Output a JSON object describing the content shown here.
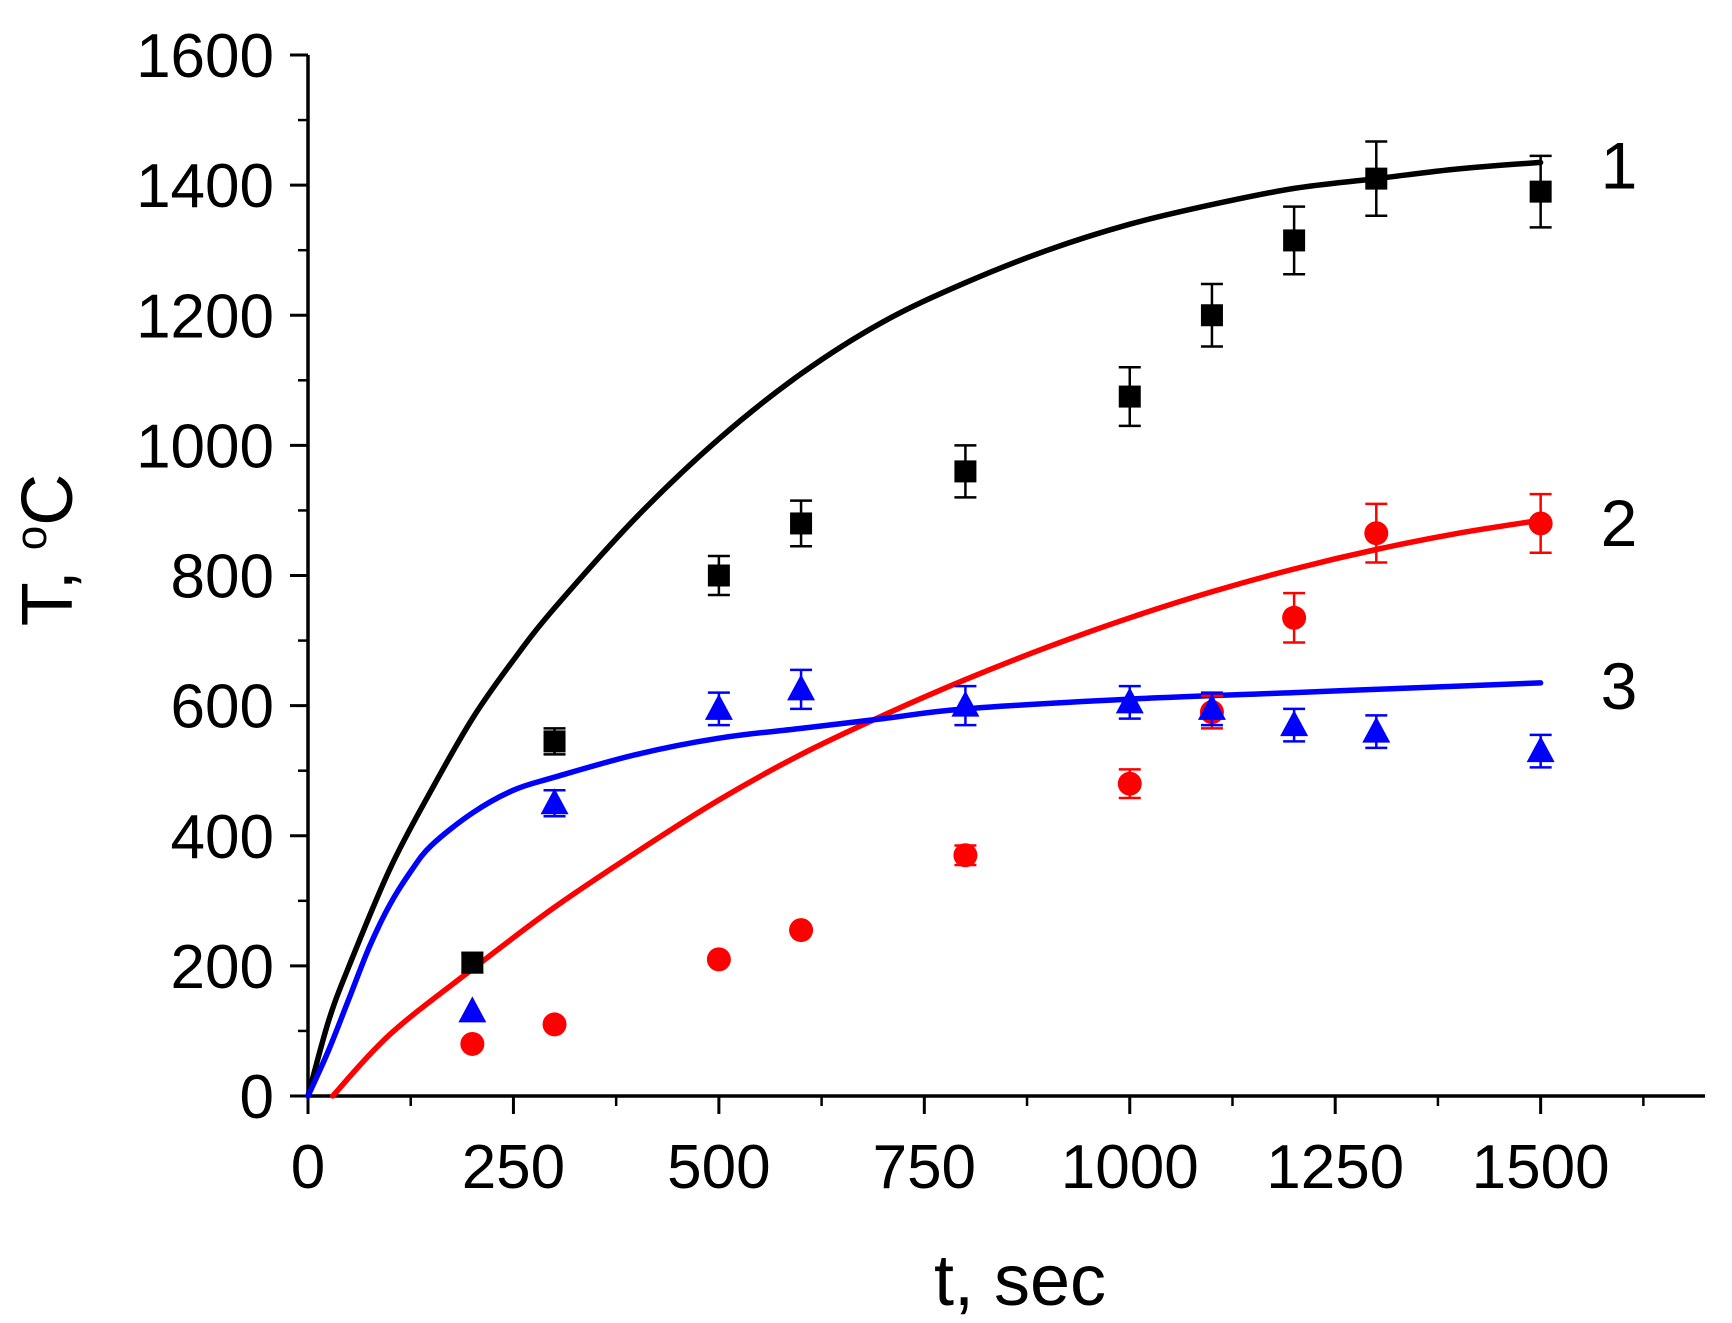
{
  "chart_data": {
    "type": "scatter",
    "xlabel": "t, sec",
    "ylabel_main": "T, ",
    "ylabel_sup": "o",
    "ylabel_unit": "C",
    "xlim": [
      0,
      1700
    ],
    "ylim": [
      0,
      1600
    ],
    "x_ticks": [
      0,
      250,
      500,
      750,
      1000,
      1250,
      1500
    ],
    "x_tick_labels": [
      "0",
      "250",
      "500",
      "750",
      "1000",
      "1250",
      "1500"
    ],
    "y_ticks": [
      0,
      200,
      400,
      600,
      800,
      1000,
      1200,
      1400,
      1600
    ],
    "y_tick_labels": [
      "0",
      "200",
      "400",
      "600",
      "800",
      "1000",
      "1200",
      "1400",
      "1600"
    ],
    "grid": false,
    "legend": "none",
    "series": [
      {
        "name": "1",
        "label": "1",
        "color": "#000000",
        "marker": "square",
        "x": [
          200,
          300,
          500,
          600,
          800,
          1000,
          1100,
          1200,
          1300,
          1500
        ],
        "y": [
          205,
          545,
          800,
          880,
          960,
          1075,
          1200,
          1315,
          1410,
          1390
        ],
        "err": [
          15,
          20,
          30,
          35,
          40,
          45,
          48,
          52,
          57,
          55
        ],
        "curve": {
          "x": [
            0,
            25,
            50,
            100,
            150,
            200,
            250,
            300,
            400,
            500,
            600,
            700,
            800,
            900,
            1000,
            1100,
            1200,
            1300,
            1400,
            1500
          ],
          "y": [
            0,
            115,
            200,
            350,
            470,
            580,
            670,
            750,
            890,
            1010,
            1110,
            1190,
            1250,
            1300,
            1340,
            1370,
            1395,
            1410,
            1425,
            1435
          ]
        }
      },
      {
        "name": "2",
        "label": "2",
        "color": "#ff0000",
        "marker": "circle",
        "x": [
          200,
          300,
          500,
          600,
          800,
          1000,
          1100,
          1200,
          1300,
          1500
        ],
        "y": [
          80,
          110,
          210,
          255,
          370,
          480,
          590,
          735,
          865,
          880
        ],
        "err": [
          0,
          0,
          0,
          0,
          15,
          22,
          25,
          38,
          45,
          45
        ],
        "curve": {
          "x": [
            30,
            100,
            200,
            300,
            400,
            500,
            600,
            700,
            800,
            900,
            1000,
            1100,
            1200,
            1300,
            1400,
            1500
          ],
          "y": [
            0,
            95,
            195,
            290,
            375,
            455,
            525,
            585,
            640,
            690,
            735,
            775,
            810,
            840,
            865,
            885
          ]
        }
      },
      {
        "name": "3",
        "label": "3",
        "color": "#0000ff",
        "marker": "triangle",
        "x": [
          200,
          300,
          500,
          600,
          800,
          1000,
          1100,
          1200,
          1300,
          1500
        ],
        "y": [
          130,
          450,
          595,
          625,
          600,
          605,
          595,
          570,
          560,
          530
        ],
        "err": [
          0,
          20,
          25,
          30,
          30,
          25,
          25,
          25,
          25,
          25
        ],
        "curve": {
          "x": [
            0,
            25,
            50,
            75,
            100,
            125,
            150,
            200,
            250,
            300,
            400,
            500,
            600,
            700,
            800,
            1000,
            1200,
            1400,
            1500
          ],
          "y": [
            0,
            70,
            150,
            230,
            295,
            345,
            385,
            435,
            470,
            490,
            525,
            550,
            565,
            580,
            595,
            610,
            620,
            630,
            635
          ]
        }
      }
    ]
  }
}
